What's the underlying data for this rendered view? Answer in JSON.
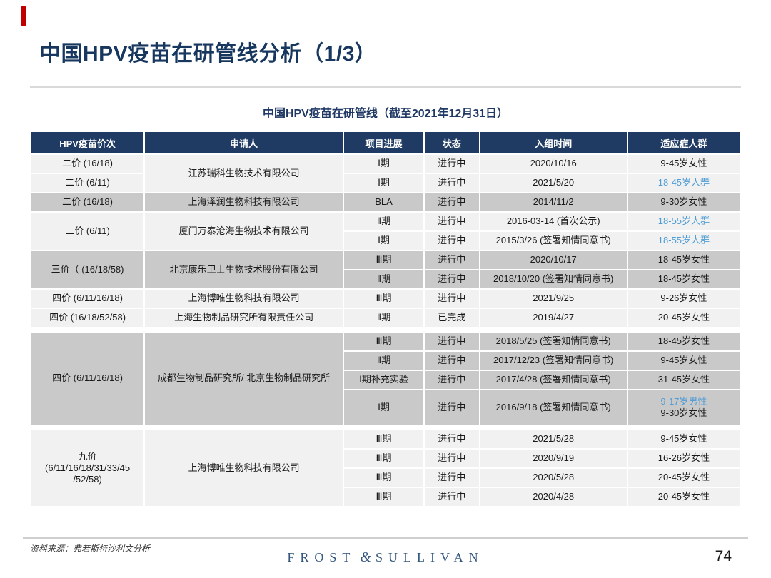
{
  "slide": {
    "title": "中国HPV疫苗在研管线分析（1/3）"
  },
  "colors": {
    "accent_red": "#C00000",
    "title_navy": "#17375E",
    "header_navy": "#1F3B63",
    "row_light": "#F1F1F1",
    "row_gray": "#C9C9C9",
    "link_blue": "#4E9CD5"
  },
  "table": {
    "caption": "中国HPV疫苗在研管线（截至2021年12月31日）",
    "headers": [
      "HPV疫苗价次",
      "申请人",
      "项目进展",
      "状态",
      "入组时间",
      "适应症人群"
    ],
    "col_names": [
      "valence",
      "applicant",
      "progress",
      "status",
      "enroll-date",
      "population"
    ],
    "col_widths_pct": [
      16.0,
      28.2,
      11.3,
      7.7,
      20.9,
      15.9
    ],
    "rows": [
      {
        "bg": "light",
        "cells": [
          {
            "c": 0,
            "t": "二价 (16/18)"
          },
          {
            "c": 1,
            "t": "江苏瑞科生物技术有限公司",
            "rs": 2
          },
          {
            "c": 2,
            "t": "Ⅰ期"
          },
          {
            "c": 3,
            "t": "进行中"
          },
          {
            "c": 4,
            "t": "2020/10/16"
          },
          {
            "c": 5,
            "t": "9-45岁女性"
          }
        ]
      },
      {
        "bg": "light",
        "cells": [
          {
            "c": 0,
            "t": "二价 (6/11)"
          },
          {
            "c": 2,
            "t": "Ⅰ期"
          },
          {
            "c": 3,
            "t": "进行中"
          },
          {
            "c": 4,
            "t": "2021/5/20"
          },
          {
            "c": 5,
            "t": "18-45岁人群",
            "blue": true
          }
        ]
      },
      {
        "bg": "gray",
        "cells": [
          {
            "c": 0,
            "t": "二价 (16/18)"
          },
          {
            "c": 1,
            "t": "上海泽润生物科技有限公司"
          },
          {
            "c": 2,
            "t": "BLA"
          },
          {
            "c": 3,
            "t": "进行中"
          },
          {
            "c": 4,
            "t": "2014/11/2"
          },
          {
            "c": 5,
            "t": "9-30岁女性"
          }
        ]
      },
      {
        "bg": "light",
        "cells": [
          {
            "c": 0,
            "t": "二价 (6/11)",
            "rs": 2
          },
          {
            "c": 1,
            "t": "厦门万泰沧海生物技术有限公司",
            "rs": 2
          },
          {
            "c": 2,
            "t": "Ⅱ期"
          },
          {
            "c": 3,
            "t": "进行中"
          },
          {
            "c": 4,
            "t": "2016-03-14 (首次公示)"
          },
          {
            "c": 5,
            "t": "18-55岁人群",
            "blue": true
          }
        ]
      },
      {
        "bg": "light",
        "cells": [
          {
            "c": 2,
            "t": "Ⅰ期"
          },
          {
            "c": 3,
            "t": "进行中"
          },
          {
            "c": 4,
            "t": "2015/3/26 (签署知情同意书)"
          },
          {
            "c": 5,
            "t": "18-55岁人群",
            "blue": true
          }
        ]
      },
      {
        "bg": "gray",
        "cells": [
          {
            "c": 0,
            "t": "三价（ (16/18/58)",
            "rs": 2
          },
          {
            "c": 1,
            "t": "北京康乐卫士生物技术股份有限公司",
            "rs": 2
          },
          {
            "c": 2,
            "t": "Ⅲ期"
          },
          {
            "c": 3,
            "t": "进行中"
          },
          {
            "c": 4,
            "t": "2020/10/17"
          },
          {
            "c": 5,
            "t": "18-45岁女性"
          }
        ]
      },
      {
        "bg": "gray",
        "cells": [
          {
            "c": 2,
            "t": "Ⅱ期"
          },
          {
            "c": 3,
            "t": "进行中"
          },
          {
            "c": 4,
            "t": "2018/10/20 (签署知情同意书)"
          },
          {
            "c": 5,
            "t": "18-45岁女性"
          }
        ]
      },
      {
        "bg": "light",
        "cells": [
          {
            "c": 0,
            "t": "四价 (6/11/16/18)"
          },
          {
            "c": 1,
            "t": "上海博唯生物科技有限公司"
          },
          {
            "c": 2,
            "t": "Ⅲ期"
          },
          {
            "c": 3,
            "t": "进行中"
          },
          {
            "c": 4,
            "t": "2021/9/25"
          },
          {
            "c": 5,
            "t": "9-26岁女性"
          }
        ]
      },
      {
        "bg": "light",
        "cells": [
          {
            "c": 0,
            "t": "四价 (16/18/52/58)"
          },
          {
            "c": 1,
            "t": "上海生物制品研究所有限责任公司"
          },
          {
            "c": 2,
            "t": "Ⅱ期"
          },
          {
            "c": 3,
            "t": "已完成"
          },
          {
            "c": 4,
            "t": "2019/4/27"
          },
          {
            "c": 5,
            "t": "20-45岁女性"
          }
        ]
      },
      {
        "spacer": true
      },
      {
        "bg": "gray",
        "cells": [
          {
            "c": 0,
            "t": "四价 (6/11/16/18)",
            "rs": 4
          },
          {
            "c": 1,
            "t": "成都生物制品研究所/ 北京生物制品研究所",
            "rs": 4
          },
          {
            "c": 2,
            "t": "Ⅲ期"
          },
          {
            "c": 3,
            "t": "进行中"
          },
          {
            "c": 4,
            "t": "2018/5/25 (签署知情同意书)"
          },
          {
            "c": 5,
            "t": "18-45岁女性"
          }
        ]
      },
      {
        "bg": "gray",
        "cells": [
          {
            "c": 2,
            "t": "Ⅱ期"
          },
          {
            "c": 3,
            "t": "进行中"
          },
          {
            "c": 4,
            "t": "2017/12/23 (签署知情同意书)"
          },
          {
            "c": 5,
            "t": "9-45岁女性"
          }
        ]
      },
      {
        "bg": "gray",
        "cells": [
          {
            "c": 2,
            "t": "Ⅰ期补充实验"
          },
          {
            "c": 3,
            "t": "进行中"
          },
          {
            "c": 4,
            "t": "2017/4/28 (签署知情同意书)"
          },
          {
            "c": 5,
            "t": "31-45岁女性"
          }
        ]
      },
      {
        "bg": "gray",
        "h": 48,
        "cells": [
          {
            "c": 2,
            "t": "Ⅰ期"
          },
          {
            "c": 3,
            "t": "进行中"
          },
          {
            "c": 4,
            "t": "2016/9/18 (签署知情同意书)"
          },
          {
            "c": 5,
            "lines": [
              {
                "t": "9-17岁男性",
                "blue": true
              },
              {
                "t": "9-30岁女性"
              }
            ]
          }
        ]
      },
      {
        "spacer": true
      },
      {
        "bg": "light",
        "cells": [
          {
            "c": 0,
            "rs": 4,
            "lines": [
              {
                "t": "九价"
              },
              {
                "t": "(6/11/16/18/31/33/45"
              },
              {
                "t": "/52/58)"
              }
            ]
          },
          {
            "c": 1,
            "t": "上海博唯生物科技有限公司",
            "rs": 4
          },
          {
            "c": 2,
            "t": "Ⅲ期"
          },
          {
            "c": 3,
            "t": "进行中"
          },
          {
            "c": 4,
            "t": "2021/5/28"
          },
          {
            "c": 5,
            "t": "9-45岁女性"
          }
        ]
      },
      {
        "bg": "light",
        "cells": [
          {
            "c": 2,
            "t": "Ⅲ期"
          },
          {
            "c": 3,
            "t": "进行中"
          },
          {
            "c": 4,
            "t": "2020/9/19"
          },
          {
            "c": 5,
            "t": "16-26岁女性"
          }
        ]
      },
      {
        "bg": "light",
        "cells": [
          {
            "c": 2,
            "t": "Ⅲ期"
          },
          {
            "c": 3,
            "t": "进行中"
          },
          {
            "c": 4,
            "t": "2020/5/28"
          },
          {
            "c": 5,
            "t": "20-45岁女性"
          }
        ]
      },
      {
        "bg": "light",
        "cells": [
          {
            "c": 2,
            "t": "Ⅲ期"
          },
          {
            "c": 3,
            "t": "进行中"
          },
          {
            "c": 4,
            "t": "2020/4/28"
          },
          {
            "c": 5,
            "t": "20-45岁女性"
          }
        ]
      }
    ]
  },
  "footer": {
    "source": "资料来源：弗若斯特沙利文分析",
    "logo_left": "FROST",
    "logo_amp": "&",
    "logo_right": "SULLIVAN",
    "page_number": "74"
  }
}
